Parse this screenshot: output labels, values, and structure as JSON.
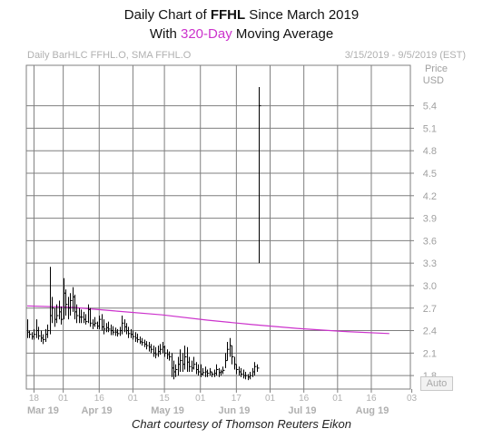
{
  "title": {
    "line1_prefix": "Daily Chart of ",
    "ticker": "FFHL",
    "line1_suffix": " Since March 2019",
    "line2_prefix": "With ",
    "line2_highlight": "320-Day",
    "line2_suffix": " Moving Average"
  },
  "header": {
    "left_text": "Daily BarHLC FFHL.O, SMA FFHL.O",
    "right_text": "3/15/2019 - 9/5/2019 (EST)"
  },
  "auto_button": "Auto",
  "credit": "Chart courtesy of Thomson Reuters Eikon",
  "colors": {
    "grid": "#7f7f7f",
    "bars": "#000000",
    "sma": "#cc33cc",
    "highlight": "#cc33cc"
  },
  "chart_data": {
    "type": "line",
    "yaxis_title": [
      "Price",
      "USD"
    ],
    "ylim": [
      1.62,
      5.94
    ],
    "yticks": [
      1.8,
      2.1,
      2.4,
      2.7,
      3,
      3.3,
      3.6,
      3.9,
      4.2,
      4.5,
      4.8,
      5.1,
      5.4
    ],
    "xticks": [
      {
        "label": "18",
        "day": 3
      },
      {
        "label": "01",
        "day": 16
      },
      {
        "label": "16",
        "day": 32
      },
      {
        "label": "01",
        "day": 47
      },
      {
        "label": "15",
        "day": 61
      },
      {
        "label": "01",
        "day": 77
      },
      {
        "label": "17",
        "day": 93
      },
      {
        "label": "01",
        "day": 108
      },
      {
        "label": "16",
        "day": 123
      },
      {
        "label": "01",
        "day": 138
      },
      {
        "label": "16",
        "day": 153
      },
      {
        "label": "03",
        "day": 171
      }
    ],
    "month_labels": [
      {
        "label": "Mar 19",
        "day": 0
      },
      {
        "label": "Apr 19",
        "day": 24
      },
      {
        "label": "May 19",
        "day": 55
      },
      {
        "label": "Jun 19",
        "day": 85
      },
      {
        "label": "Jul 19",
        "day": 116
      },
      {
        "label": "Aug 19",
        "day": 146
      }
    ],
    "series": [
      {
        "name": "Daily BarHLC FFHL.O",
        "kind": "hlc_bars",
        "bars": [
          [
            0,
            2.55,
            2.3,
            2.38
          ],
          [
            1,
            2.4,
            2.3,
            2.35
          ],
          [
            2,
            2.38,
            2.28,
            2.32
          ],
          [
            3,
            2.42,
            2.28,
            2.35
          ],
          [
            4,
            2.55,
            2.3,
            2.4
          ],
          [
            5,
            2.45,
            2.28,
            2.33
          ],
          [
            6,
            2.4,
            2.25,
            2.3
          ],
          [
            7,
            2.35,
            2.22,
            2.28
          ],
          [
            8,
            2.42,
            2.25,
            2.35
          ],
          [
            9,
            2.48,
            2.3,
            2.4
          ],
          [
            10,
            3.25,
            2.35,
            2.6
          ],
          [
            11,
            2.85,
            2.5,
            2.7
          ],
          [
            12,
            2.7,
            2.45,
            2.55
          ],
          [
            13,
            2.75,
            2.5,
            2.6
          ],
          [
            14,
            2.8,
            2.55,
            2.65
          ],
          [
            15,
            2.72,
            2.48,
            2.55
          ],
          [
            16,
            3.1,
            2.55,
            2.9
          ],
          [
            17,
            2.95,
            2.6,
            2.75
          ],
          [
            18,
            2.85,
            2.55,
            2.7
          ],
          [
            19,
            2.9,
            2.6,
            2.8
          ],
          [
            20,
            2.98,
            2.65,
            2.85
          ],
          [
            21,
            2.88,
            2.55,
            2.65
          ],
          [
            22,
            2.75,
            2.5,
            2.6
          ],
          [
            23,
            2.7,
            2.5,
            2.58
          ],
          [
            24,
            2.68,
            2.5,
            2.58
          ],
          [
            25,
            2.65,
            2.5,
            2.55
          ],
          [
            26,
            2.62,
            2.48,
            2.52
          ],
          [
            27,
            2.75,
            2.5,
            2.68
          ],
          [
            28,
            2.7,
            2.45,
            2.5
          ],
          [
            29,
            2.55,
            2.42,
            2.48
          ],
          [
            30,
            2.58,
            2.45,
            2.5
          ],
          [
            31,
            2.52,
            2.42,
            2.46
          ],
          [
            32,
            2.6,
            2.42,
            2.55
          ],
          [
            33,
            2.62,
            2.4,
            2.45
          ],
          [
            34,
            2.55,
            2.35,
            2.42
          ],
          [
            35,
            2.5,
            2.38,
            2.44
          ],
          [
            36,
            2.52,
            2.38,
            2.42
          ],
          [
            37,
            2.48,
            2.34,
            2.4
          ],
          [
            38,
            2.46,
            2.34,
            2.38
          ],
          [
            39,
            2.44,
            2.33,
            2.38
          ],
          [
            40,
            2.42,
            2.32,
            2.36
          ],
          [
            41,
            2.45,
            2.33,
            2.4
          ],
          [
            42,
            2.6,
            2.35,
            2.5
          ],
          [
            43,
            2.55,
            2.38,
            2.45
          ],
          [
            44,
            2.5,
            2.35,
            2.4
          ],
          [
            45,
            2.45,
            2.3,
            2.36
          ],
          [
            46,
            2.42,
            2.3,
            2.35
          ],
          [
            47,
            2.4,
            2.28,
            2.32
          ],
          [
            48,
            2.38,
            2.25,
            2.3
          ],
          [
            49,
            2.36,
            2.24,
            2.28
          ],
          [
            50,
            2.32,
            2.22,
            2.25
          ],
          [
            51,
            2.3,
            2.2,
            2.24
          ],
          [
            52,
            2.28,
            2.18,
            2.22
          ],
          [
            53,
            2.26,
            2.15,
            2.2
          ],
          [
            54,
            2.25,
            2.12,
            2.18
          ],
          [
            55,
            2.22,
            2.1,
            2.15
          ],
          [
            56,
            2.2,
            2.05,
            2.1
          ],
          [
            57,
            2.18,
            2.03,
            2.08
          ],
          [
            58,
            2.2,
            2.05,
            2.12
          ],
          [
            59,
            2.22,
            2.08,
            2.15
          ],
          [
            60,
            2.25,
            2.1,
            2.18
          ],
          [
            61,
            2.2,
            2.05,
            2.1
          ],
          [
            62,
            2.15,
            2.02,
            2.08
          ],
          [
            63,
            2.12,
            2.0,
            2.05
          ],
          [
            64,
            2.1,
            1.78,
            1.9
          ],
          [
            65,
            2.0,
            1.75,
            1.85
          ],
          [
            66,
            1.95,
            1.78,
            1.88
          ],
          [
            67,
            2.05,
            1.8,
            1.95
          ],
          [
            68,
            2.15,
            1.85,
            2.0
          ],
          [
            69,
            2.1,
            1.85,
            1.95
          ],
          [
            70,
            2.2,
            1.88,
            2.05
          ],
          [
            71,
            2.18,
            1.85,
            1.98
          ],
          [
            72,
            2.05,
            1.85,
            1.92
          ],
          [
            73,
            2.0,
            1.85,
            1.9
          ],
          [
            74,
            2.05,
            1.88,
            1.95
          ],
          [
            75,
            1.98,
            1.82,
            1.88
          ],
          [
            76,
            1.95,
            1.8,
            1.85
          ],
          [
            77,
            1.95,
            1.78,
            1.82
          ],
          [
            78,
            1.9,
            1.8,
            1.84
          ],
          [
            79,
            1.92,
            1.78,
            1.85
          ],
          [
            80,
            1.88,
            1.78,
            1.83
          ],
          [
            81,
            1.9,
            1.8,
            1.85
          ],
          [
            82,
            1.85,
            1.78,
            1.82
          ],
          [
            83,
            1.88,
            1.78,
            1.83
          ],
          [
            84,
            1.95,
            1.8,
            1.88
          ],
          [
            85,
            1.9,
            1.78,
            1.84
          ],
          [
            86,
            1.88,
            1.8,
            1.85
          ],
          [
            87,
            1.92,
            1.82,
            1.87
          ],
          [
            88,
            2.1,
            1.9,
            2.0
          ],
          [
            89,
            2.25,
            2.0,
            2.15
          ],
          [
            90,
            2.3,
            2.05,
            2.2
          ],
          [
            91,
            2.2,
            1.95,
            2.05
          ],
          [
            92,
            2.05,
            1.88,
            1.95
          ],
          [
            93,
            1.95,
            1.82,
            1.88
          ],
          [
            94,
            1.92,
            1.8,
            1.85
          ],
          [
            95,
            1.9,
            1.78,
            1.82
          ],
          [
            96,
            1.88,
            1.76,
            1.8
          ],
          [
            97,
            1.85,
            1.75,
            1.8
          ],
          [
            98,
            1.82,
            1.74,
            1.78
          ],
          [
            99,
            1.85,
            1.75,
            1.8
          ],
          [
            100,
            1.9,
            1.78,
            1.85
          ],
          [
            101,
            1.98,
            1.8,
            1.92
          ],
          [
            102,
            1.95,
            1.85,
            1.9
          ],
          [
            103,
            5.65,
            3.3,
            5.4
          ]
        ]
      },
      {
        "name": "SMA FFHL.O",
        "kind": "line",
        "points": [
          [
            0,
            2.73
          ],
          [
            20,
            2.71
          ],
          [
            40,
            2.66
          ],
          [
            60,
            2.61
          ],
          [
            80,
            2.54
          ],
          [
            100,
            2.48
          ],
          [
            120,
            2.43
          ],
          [
            140,
            2.39
          ],
          [
            161,
            2.36
          ]
        ]
      }
    ]
  }
}
